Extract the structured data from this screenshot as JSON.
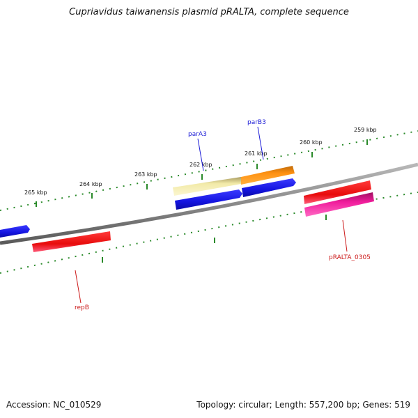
{
  "title": "Cupriavidus taiwanensis plasmid pRALTA, complete sequence",
  "footer": {
    "accession": "Accession: NC_010529",
    "summary": "Topology: circular; Length: 557,200 bp; Genes: 519"
  },
  "ruler": {
    "ticks": [
      "259 kbp",
      "260 kbp",
      "261 kbp",
      "262 kbp",
      "263 kbp",
      "264 kbp",
      "265 kbp"
    ]
  },
  "gene_labels": [
    {
      "text": "parA3",
      "color": "#1a1ad6"
    },
    {
      "text": "parB3",
      "color": "#1a1ad6"
    },
    {
      "text": "pRALTA_0305",
      "color": "#cc1a1a"
    },
    {
      "text": "repB",
      "color": "#cc1a1a"
    }
  ],
  "colors": {
    "backbone": "#808080",
    "tick": "#2a8a2a",
    "blue_feature": "#1515e0",
    "red_feature": "#e81010",
    "magenta_feature": "#e8169a",
    "orange_feature": "#f58a0f",
    "khaki_feature": "#efe6a0"
  }
}
